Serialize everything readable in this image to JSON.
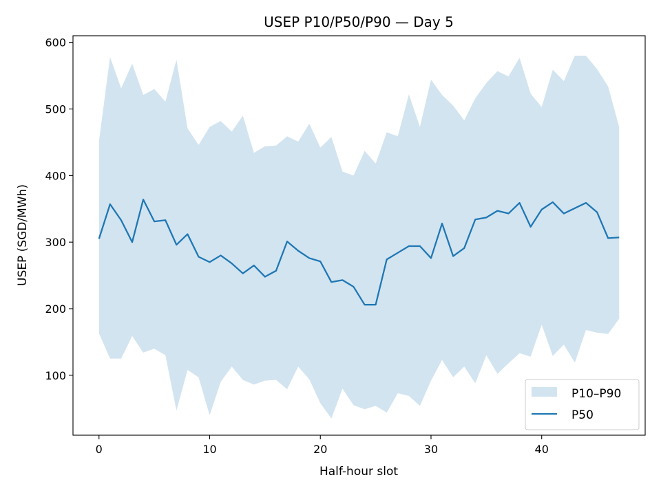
{
  "chart_data": {
    "type": "area",
    "title": "USEP P10/P50/P90 — Day 5",
    "xlabel": "Half-hour slot",
    "ylabel": "USEP (SGD/MWh)",
    "xlim": [
      -2.35,
      49.35
    ],
    "ylim": [
      10,
      610
    ],
    "x_ticks": [
      0,
      10,
      20,
      30,
      40
    ],
    "y_ticks": [
      100,
      200,
      300,
      400,
      500,
      600
    ],
    "x_tick_labels": [
      "0",
      "10",
      "20",
      "30",
      "40"
    ],
    "y_tick_labels": [
      "100",
      "200",
      "300",
      "400",
      "500",
      "600"
    ],
    "grid": false,
    "legend_position": "lower-right",
    "legend": [
      {
        "label": "P10–P90",
        "kind": "patch"
      },
      {
        "label": "P50",
        "kind": "line"
      }
    ],
    "x": [
      0,
      1,
      2,
      3,
      4,
      5,
      6,
      7,
      8,
      9,
      10,
      11,
      12,
      13,
      14,
      15,
      16,
      17,
      18,
      19,
      20,
      21,
      22,
      23,
      24,
      25,
      26,
      27,
      28,
      29,
      30,
      31,
      32,
      33,
      34,
      35,
      36,
      37,
      38,
      39,
      40,
      41,
      42,
      43,
      44,
      45,
      46,
      47
    ],
    "series": [
      {
        "name": "P10–P90",
        "kind": "band",
        "color": "#1f77b4",
        "lower": [
          163,
          125,
          125,
          159,
          134,
          140,
          130,
          47,
          108,
          97,
          40,
          90,
          113,
          93,
          86,
          92,
          93,
          79,
          113,
          94,
          58,
          35,
          80,
          55,
          49,
          54,
          44,
          73,
          69,
          54,
          92,
          123,
          97,
          113,
          88,
          130,
          102,
          118,
          133,
          128,
          176,
          129,
          146,
          119,
          168,
          164,
          162,
          185
        ],
        "upper": [
          452,
          578,
          531,
          568,
          521,
          530,
          511,
          574,
          471,
          446,
          473,
          482,
          466,
          490,
          434,
          444,
          445,
          459,
          451,
          478,
          442,
          458,
          406,
          400,
          437,
          418,
          465,
          459,
          522,
          473,
          544,
          521,
          505,
          483,
          516,
          539,
          557,
          549,
          577,
          523,
          503,
          559,
          542,
          580,
          580,
          560,
          534,
          473
        ]
      },
      {
        "name": "P50",
        "kind": "line",
        "color": "#1f77b4",
        "values": [
          305,
          357,
          333,
          300,
          364,
          331,
          333,
          296,
          312,
          278,
          270,
          280,
          268,
          253,
          265,
          248,
          257,
          301,
          287,
          276,
          271,
          240,
          243,
          233,
          206,
          206,
          274,
          284,
          294,
          294,
          276,
          328,
          279,
          291,
          334,
          337,
          347,
          343,
          359,
          323,
          349,
          360,
          343,
          351,
          359,
          345,
          306,
          307
        ]
      }
    ]
  }
}
